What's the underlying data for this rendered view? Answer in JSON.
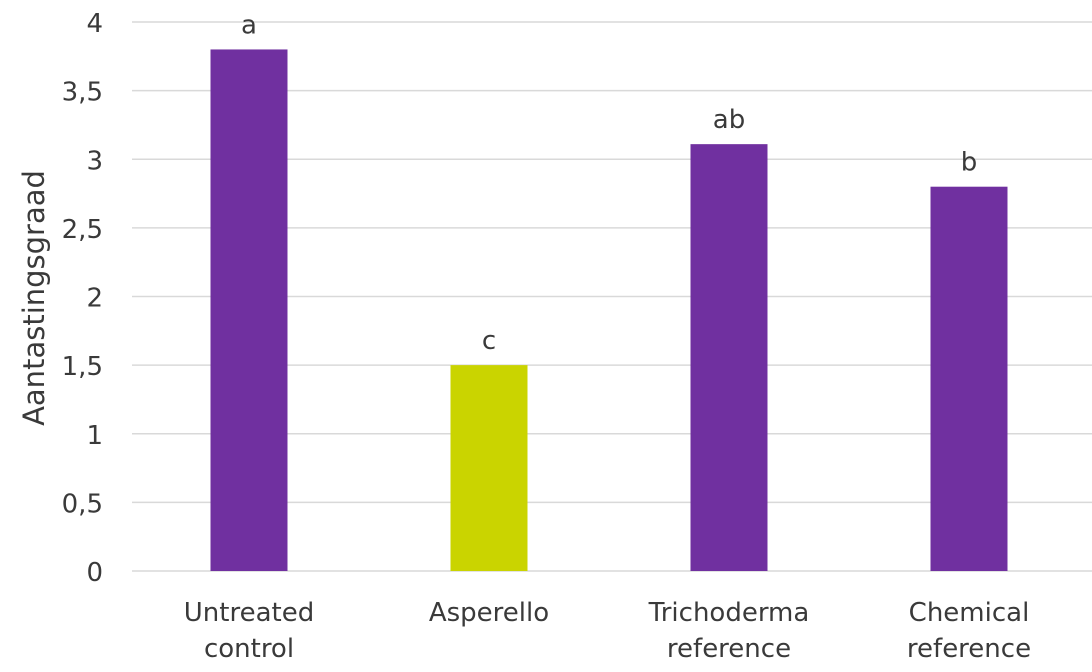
{
  "chart_data": {
    "type": "bar",
    "title": "",
    "xlabel": "",
    "ylabel": "Aantastingsgraad",
    "ylim": [
      0,
      4
    ],
    "grid": true,
    "y_ticks": [
      "0",
      "0,5",
      "1",
      "1,5",
      "2",
      "2,5",
      "3",
      "3,5",
      "4"
    ],
    "y_tick_values": [
      0,
      0.5,
      1,
      1.5,
      2,
      2.5,
      3,
      3.5,
      4
    ],
    "categories": [
      [
        "Untreated",
        "control"
      ],
      [
        "Asperello"
      ],
      [
        "Trichoderma",
        "reference"
      ],
      [
        "Chemical",
        "reference"
      ]
    ],
    "values": [
      3.8,
      1.5,
      3.11,
      2.8
    ],
    "significance_labels": [
      "a",
      "c",
      "ab",
      "b"
    ],
    "bar_colors": [
      "#7030a0",
      "#cad400",
      "#7030a0",
      "#7030a0"
    ],
    "gridline_color": "#d9d9d9"
  }
}
